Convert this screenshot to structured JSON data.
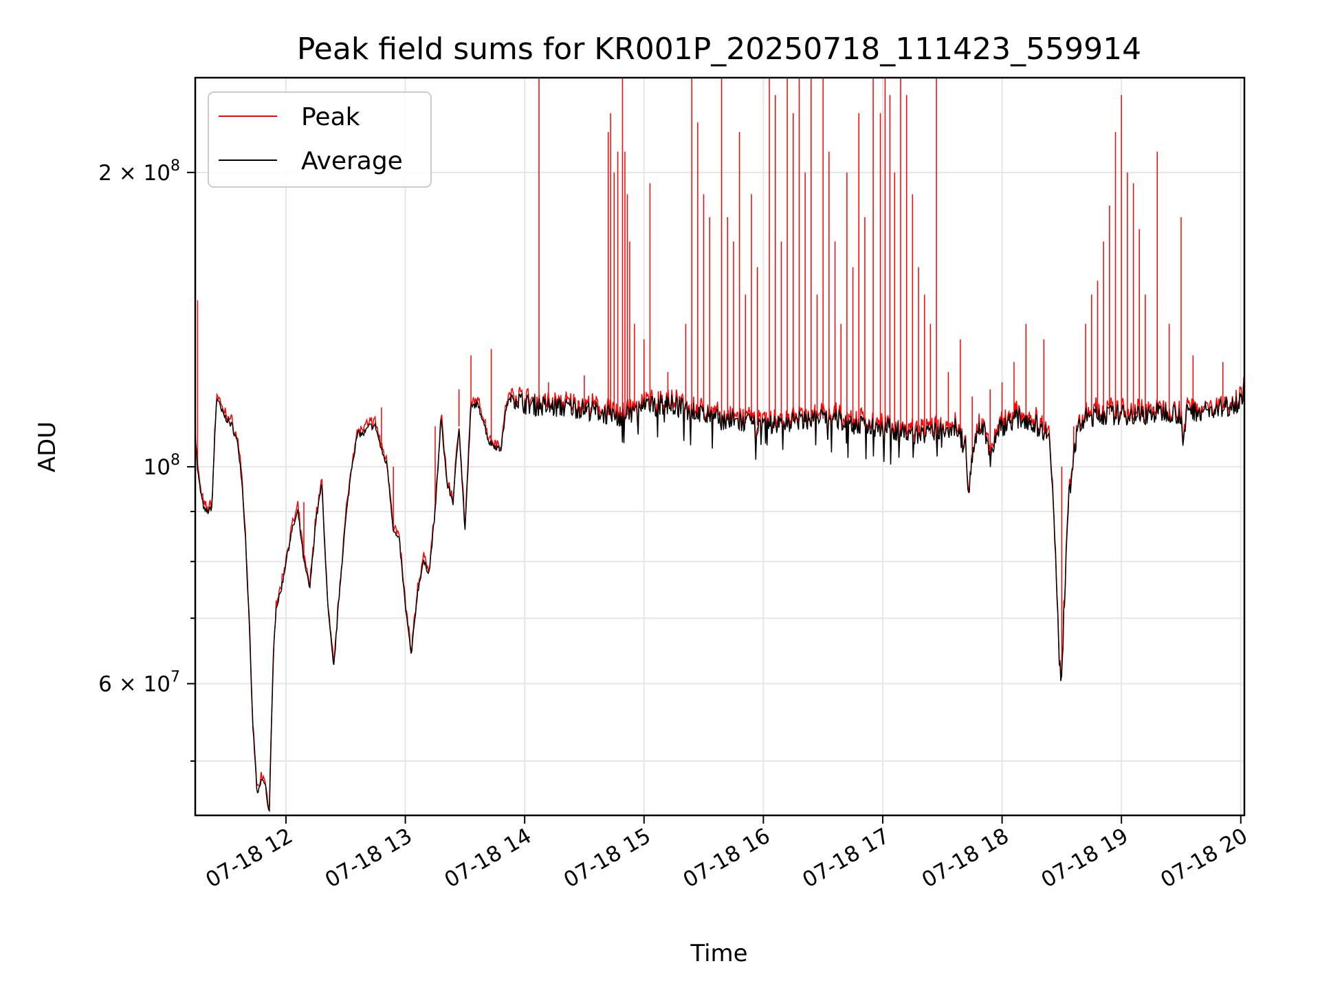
{
  "chart_data": {
    "type": "line",
    "title": "Peak field sums for KR001P_20250718_111423_559914",
    "xlabel": "Time",
    "ylabel": "ADU",
    "y_scale": "log",
    "ylim": [
      44000000,
      250000000
    ],
    "xlim_hours": [
      11.24,
      20.03
    ],
    "grid": true,
    "legend_position": "upper-left",
    "x_ticks": [
      {
        "value": "2025-07-18 12:00",
        "label": "07-18 12"
      },
      {
        "value": "2025-07-18 13:00",
        "label": "07-18 13"
      },
      {
        "value": "2025-07-18 14:00",
        "label": "07-18 14"
      },
      {
        "value": "2025-07-18 15:00",
        "label": "07-18 15"
      },
      {
        "value": "2025-07-18 16:00",
        "label": "07-18 16"
      },
      {
        "value": "2025-07-18 17:00",
        "label": "07-18 17"
      },
      {
        "value": "2025-07-18 18:00",
        "label": "07-18 18"
      },
      {
        "value": "2025-07-18 19:00",
        "label": "07-18 19"
      },
      {
        "value": "2025-07-18 20:00",
        "label": "07-18 20"
      }
    ],
    "y_ticks_major": [
      {
        "value": 60000000,
        "base": "6 × 10",
        "exp": "7"
      },
      {
        "value": 100000000,
        "base": "10",
        "exp": "8"
      },
      {
        "value": 200000000,
        "base": "2 × 10",
        "exp": "8"
      }
    ],
    "y_ticks_minor": [
      50000000,
      70000000,
      80000000,
      90000000
    ],
    "series": [
      {
        "name": "Average",
        "color": "#000000",
        "x": [
          11.24,
          11.26,
          11.28,
          11.3,
          11.32,
          11.35,
          11.38,
          11.4,
          11.42,
          11.44,
          11.46,
          11.5,
          11.55,
          11.6,
          11.63,
          11.66,
          11.69,
          11.72,
          11.76,
          11.8,
          11.83,
          11.86,
          11.88,
          11.9,
          11.92,
          11.95,
          11.97,
          12.0,
          12.05,
          12.1,
          12.15,
          12.2,
          12.25,
          12.3,
          12.35,
          12.4,
          12.45,
          12.5,
          12.55,
          12.6,
          12.65,
          12.7,
          12.75,
          12.8,
          12.85,
          12.9,
          12.95,
          13.0,
          13.05,
          13.1,
          13.15,
          13.2,
          13.25,
          13.3,
          13.35,
          13.4,
          13.45,
          13.5,
          13.55,
          13.6,
          13.65,
          13.7,
          13.75,
          13.8,
          13.85,
          13.9,
          14.0,
          14.2,
          14.4,
          14.6,
          14.8,
          15.0,
          15.2,
          15.4,
          15.6,
          15.8,
          16.0,
          16.2,
          16.4,
          16.6,
          16.8,
          17.0,
          17.2,
          17.4,
          17.6,
          17.7,
          17.72,
          17.74,
          17.78,
          17.85,
          17.9,
          17.95,
          18.0,
          18.1,
          18.2,
          18.3,
          18.4,
          18.45,
          18.48,
          18.5,
          18.52,
          18.55,
          18.6,
          18.65,
          18.7,
          18.8,
          18.9,
          19.0,
          19.2,
          19.4,
          19.5,
          19.52,
          19.55,
          19.6,
          19.8,
          20.0,
          20.03
        ],
        "y": [
          108000000,
          99000000,
          95000000,
          92000000,
          90000000,
          90000000,
          91000000,
          105000000,
          118000000,
          116000000,
          114000000,
          112000000,
          110000000,
          105000000,
          97000000,
          85000000,
          70000000,
          55000000,
          46000000,
          48000000,
          47000000,
          44000000,
          55000000,
          67000000,
          72000000,
          74000000,
          76000000,
          80000000,
          86000000,
          90000000,
          80000000,
          75000000,
          88000000,
          96000000,
          72000000,
          62000000,
          75000000,
          88000000,
          100000000,
          108000000,
          108000000,
          110000000,
          110000000,
          104000000,
          100000000,
          86000000,
          84000000,
          72000000,
          64000000,
          74000000,
          80000000,
          78000000,
          90000000,
          112000000,
          96000000,
          92000000,
          110000000,
          86000000,
          115000000,
          116000000,
          112000000,
          106000000,
          105000000,
          104000000,
          116000000,
          118000000,
          116000000,
          115000000,
          115000000,
          114000000,
          112000000,
          115000000,
          116000000,
          114000000,
          112000000,
          111000000,
          110000000,
          111000000,
          112000000,
          112000000,
          110000000,
          110000000,
          108000000,
          108000000,
          110000000,
          104000000,
          92000000,
          100000000,
          108000000,
          110000000,
          102000000,
          108000000,
          110000000,
          112000000,
          112000000,
          110000000,
          108000000,
          80000000,
          62000000,
          61000000,
          72000000,
          90000000,
          104000000,
          110000000,
          112000000,
          113000000,
          113000000,
          113000000,
          113000000,
          114000000,
          113000000,
          104000000,
          115000000,
          114000000,
          114000000,
          117000000,
          120000000
        ]
      },
      {
        "name": "Peak",
        "color": "#ff0000",
        "spikes": [
          [
            11.26,
            148000000
          ],
          [
            12.05,
            86000000
          ],
          [
            12.15,
            92000000
          ],
          [
            12.8,
            115000000
          ],
          [
            12.9,
            100000000
          ],
          [
            13.25,
            110000000
          ],
          [
            13.45,
            120000000
          ],
          [
            13.55,
            130000000
          ],
          [
            13.72,
            132000000
          ],
          [
            14.12,
            250000000
          ],
          [
            14.2,
            122000000
          ],
          [
            14.5,
            124000000
          ],
          [
            14.7,
            220000000
          ],
          [
            14.72,
            230000000
          ],
          [
            14.75,
            200000000
          ],
          [
            14.78,
            210000000
          ],
          [
            14.82,
            250000000
          ],
          [
            14.84,
            210000000
          ],
          [
            14.86,
            190000000
          ],
          [
            14.88,
            170000000
          ],
          [
            14.92,
            140000000
          ],
          [
            15.0,
            135000000
          ],
          [
            15.05,
            195000000
          ],
          [
            15.2,
            125000000
          ],
          [
            15.35,
            140000000
          ],
          [
            15.4,
            250000000
          ],
          [
            15.45,
            225000000
          ],
          [
            15.5,
            190000000
          ],
          [
            15.55,
            180000000
          ],
          [
            15.65,
            250000000
          ],
          [
            15.7,
            180000000
          ],
          [
            15.75,
            170000000
          ],
          [
            15.8,
            220000000
          ],
          [
            15.85,
            150000000
          ],
          [
            15.9,
            190000000
          ],
          [
            15.95,
            160000000
          ],
          [
            16.05,
            250000000
          ],
          [
            16.1,
            240000000
          ],
          [
            16.15,
            170000000
          ],
          [
            16.2,
            250000000
          ],
          [
            16.25,
            230000000
          ],
          [
            16.3,
            250000000
          ],
          [
            16.35,
            200000000
          ],
          [
            16.4,
            250000000
          ],
          [
            16.45,
            150000000
          ],
          [
            16.5,
            250000000
          ],
          [
            16.55,
            210000000
          ],
          [
            16.6,
            170000000
          ],
          [
            16.65,
            140000000
          ],
          [
            16.7,
            200000000
          ],
          [
            16.75,
            160000000
          ],
          [
            16.8,
            230000000
          ],
          [
            16.85,
            180000000
          ],
          [
            16.92,
            250000000
          ],
          [
            16.98,
            230000000
          ],
          [
            17.02,
            250000000
          ],
          [
            17.06,
            240000000
          ],
          [
            17.1,
            200000000
          ],
          [
            17.15,
            250000000
          ],
          [
            17.2,
            240000000
          ],
          [
            17.25,
            190000000
          ],
          [
            17.3,
            160000000
          ],
          [
            17.35,
            150000000
          ],
          [
            17.4,
            140000000
          ],
          [
            17.45,
            250000000
          ],
          [
            17.55,
            125000000
          ],
          [
            17.65,
            135000000
          ],
          [
            17.75,
            118000000
          ],
          [
            17.9,
            120000000
          ],
          [
            18.0,
            122000000
          ],
          [
            18.1,
            128000000
          ],
          [
            18.2,
            140000000
          ],
          [
            18.35,
            135000000
          ],
          [
            18.5,
            100000000
          ],
          [
            18.6,
            110000000
          ],
          [
            18.7,
            140000000
          ],
          [
            18.75,
            150000000
          ],
          [
            18.8,
            155000000
          ],
          [
            18.85,
            170000000
          ],
          [
            18.9,
            185000000
          ],
          [
            18.95,
            220000000
          ],
          [
            19.0,
            240000000
          ],
          [
            19.05,
            200000000
          ],
          [
            19.1,
            195000000
          ],
          [
            19.15,
            175000000
          ],
          [
            19.2,
            150000000
          ],
          [
            19.3,
            210000000
          ],
          [
            19.4,
            140000000
          ],
          [
            19.5,
            180000000
          ],
          [
            19.6,
            130000000
          ],
          [
            19.85,
            128000000
          ]
        ]
      }
    ]
  }
}
